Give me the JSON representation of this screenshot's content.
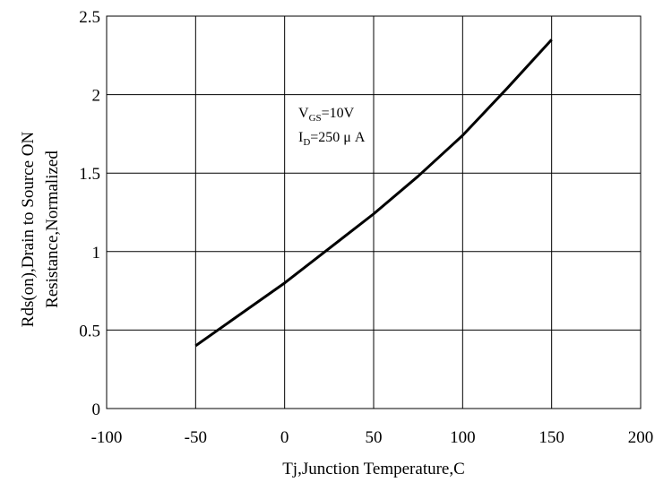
{
  "chart_data": {
    "type": "line",
    "title": "",
    "xlabel": "Tj,Junction Temperature,C",
    "ylabel_lines": [
      "Rds(on),Drain to Source ON",
      "Resistance,Normalized"
    ],
    "xlim": [
      -100,
      200
    ],
    "ylim": [
      0,
      2.5
    ],
    "xticks": [
      -100,
      -50,
      0,
      50,
      100,
      150,
      200
    ],
    "yticks": [
      0,
      0.5,
      1,
      1.5,
      2,
      2.5
    ],
    "xtick_labels": [
      "-100",
      "-50",
      "0",
      "50",
      "100",
      "150",
      "200"
    ],
    "ytick_labels": [
      "0",
      "0.5",
      "1",
      "1.5",
      "2",
      "2.5"
    ],
    "grid": true,
    "series": [
      {
        "color": "#000000",
        "x": [
          -50,
          -25,
          0,
          25,
          50,
          75,
          100,
          125,
          150
        ],
        "y": [
          0.4,
          0.6,
          0.8,
          1.02,
          1.24,
          1.48,
          1.74,
          2.04,
          2.35
        ]
      }
    ],
    "annotations": [
      {
        "main": "V",
        "sub": "GS",
        "rest": "=10V"
      },
      {
        "main": "I",
        "sub": "D",
        "rest": "=250 μ A"
      }
    ]
  }
}
